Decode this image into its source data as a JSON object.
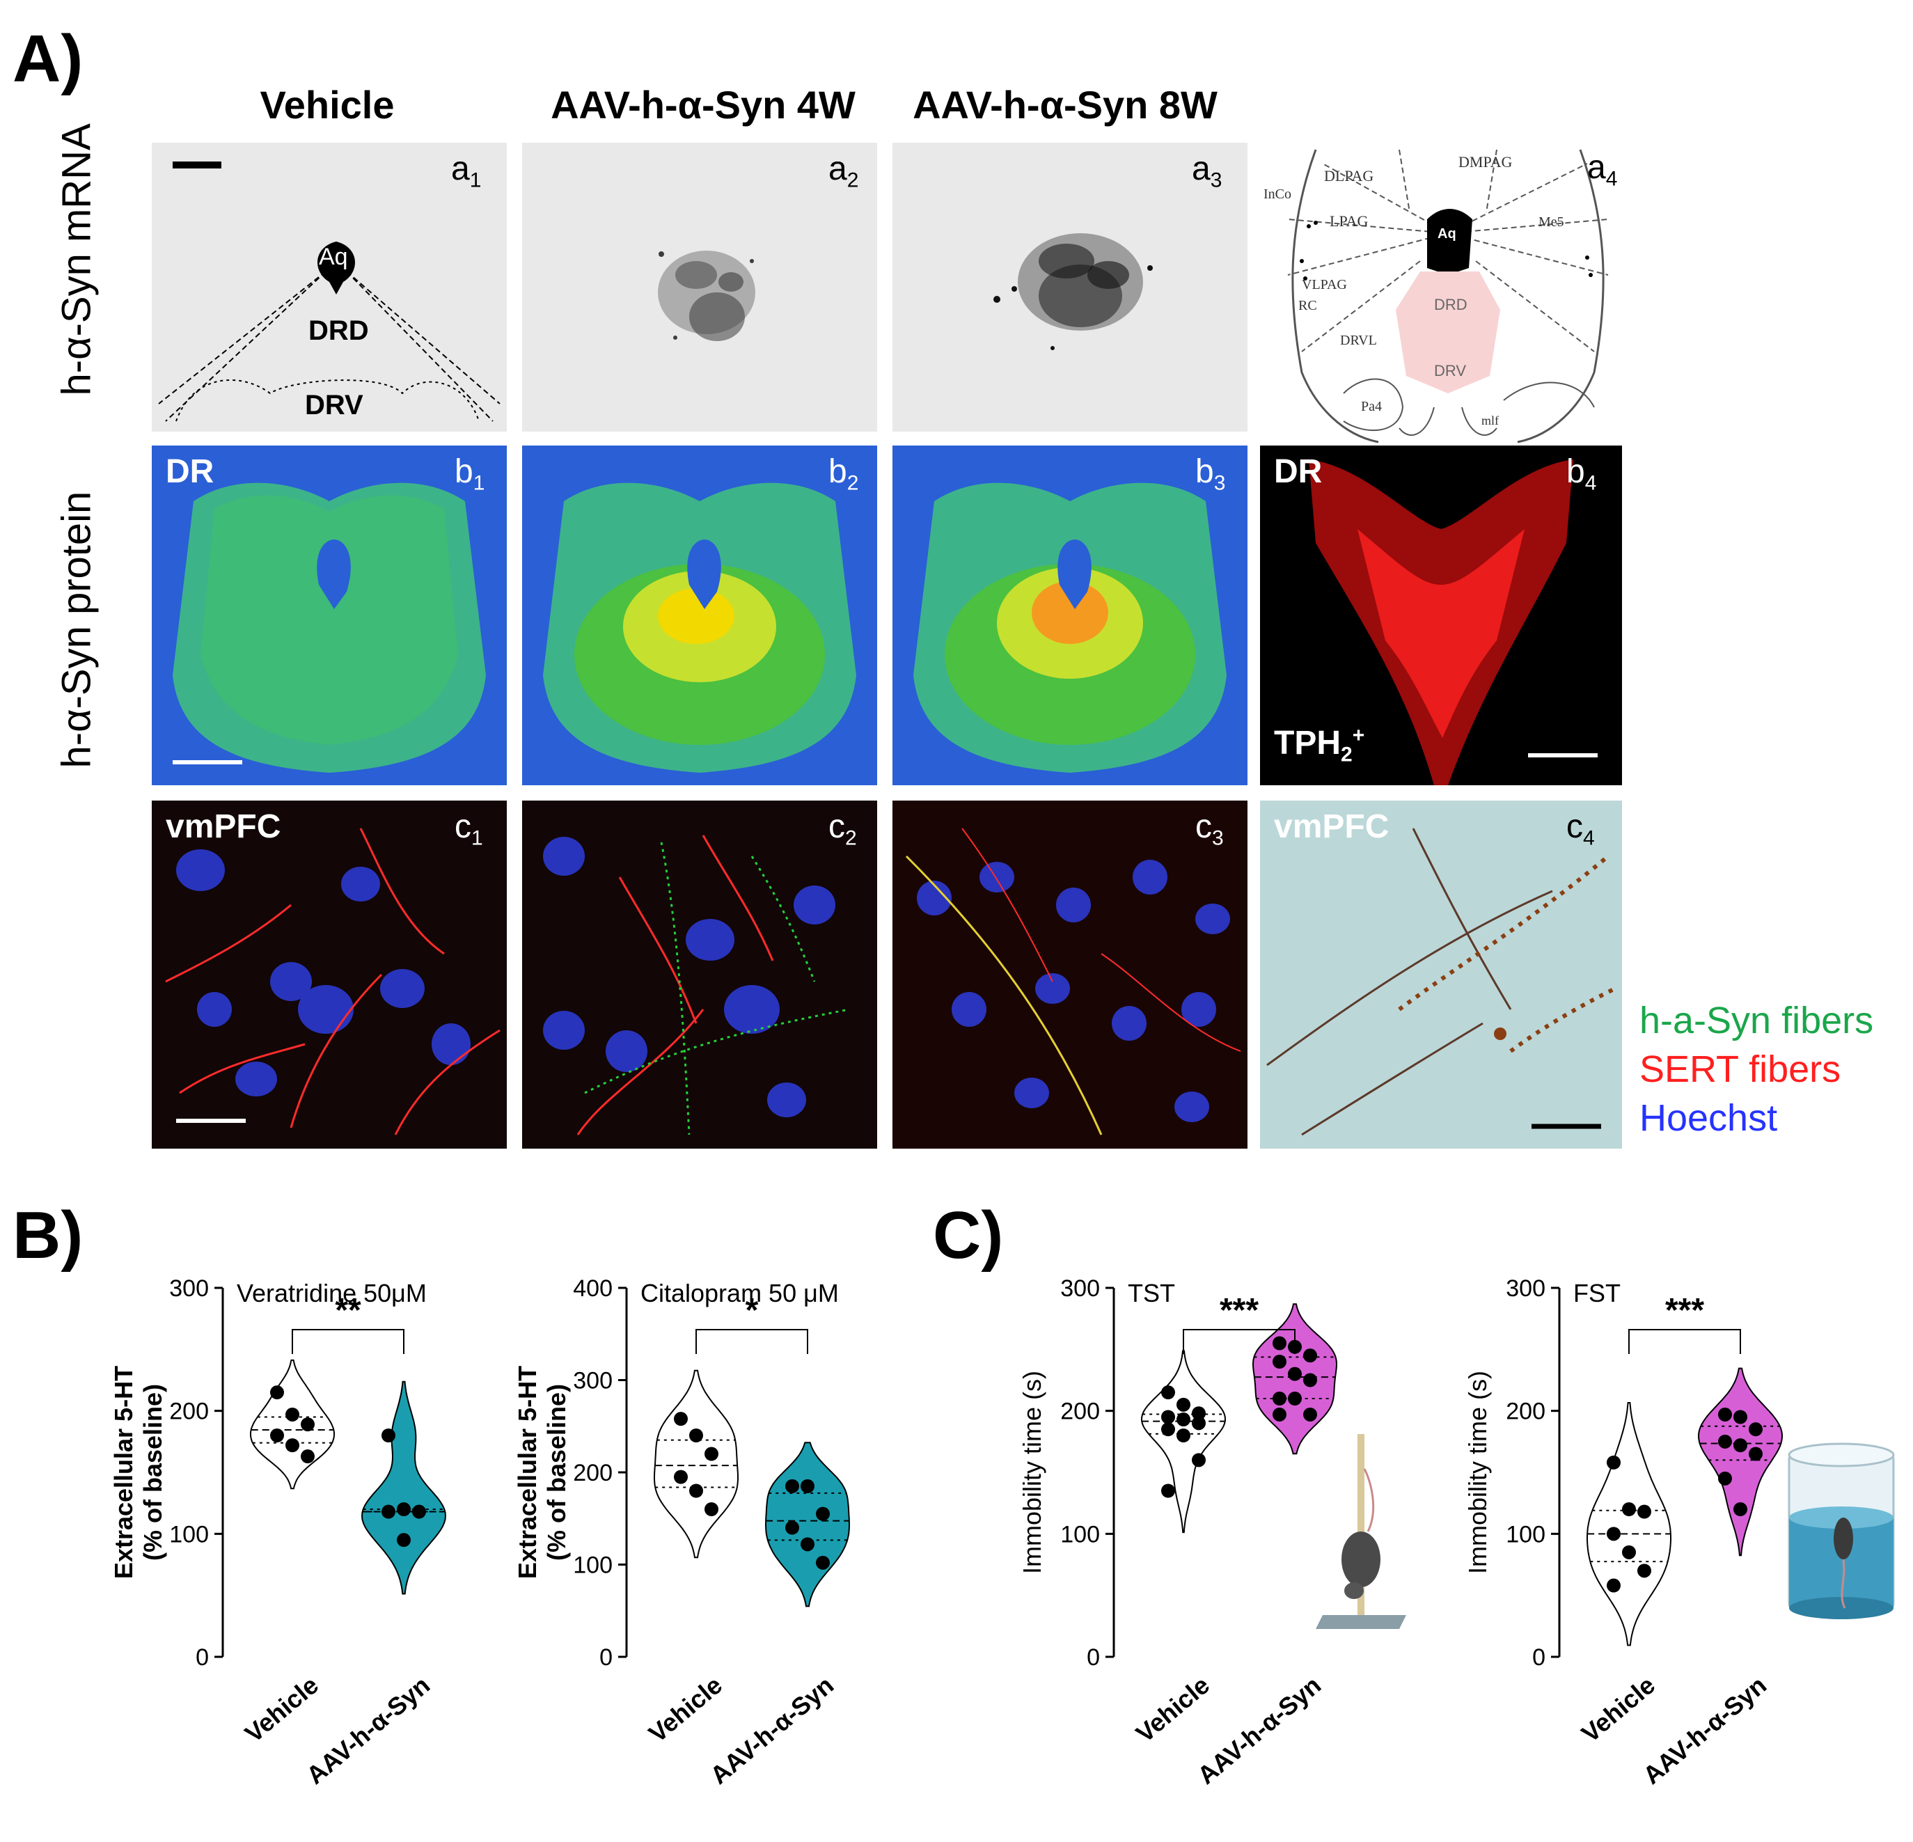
{
  "panel_letters": {
    "A": "A)",
    "B": "B)",
    "C": "C)"
  },
  "column_titles": [
    "Vehicle",
    "AAV-h-α-Syn 4W",
    "AAV-h-α-Syn 8W"
  ],
  "row_labels": [
    "h-α-Syn mRNA",
    "h-α-Syn protein"
  ],
  "sublabels": {
    "a": [
      "a",
      "1",
      "a",
      "2",
      "a",
      "3",
      "a",
      "4"
    ],
    "b": [
      "b",
      "1",
      "b",
      "2",
      "b",
      "3",
      "b",
      "4"
    ],
    "c": [
      "c",
      "1",
      "c",
      "2",
      "c",
      "3",
      "c",
      "4"
    ]
  },
  "image_tags": {
    "aq": "Aq",
    "drd": "DRD",
    "drv": "DRV",
    "dr1": "DR",
    "dr4": "DR",
    "tph": "TPH",
    "tph_sub": "2",
    "tph_sup": "+",
    "vmpfc1": "vmPFC",
    "vmpfc4": "vmPFC"
  },
  "atlas_labels": [
    "DMPAG",
    "DLPAG",
    "InCo",
    "LPAG",
    "Aq",
    "Me5",
    "VLPAG",
    "RC",
    "DRD",
    "DRVL",
    "DRV",
    "Pa4",
    "mlf"
  ],
  "legend": {
    "items": [
      {
        "label": "h-a-Syn fibers",
        "color": "#1aa64a"
      },
      {
        "label": "SERT fibers",
        "color": "#ff1f1f"
      },
      {
        "label": "Hoechst",
        "color": "#2633ff"
      }
    ]
  },
  "colors": {
    "vehicle": "#ffffff",
    "aav_b": "#1a9eaf",
    "aav_c": "#d65fd6"
  },
  "chart_data": [
    {
      "type": "violin",
      "title": "Veratridine 50μM",
      "ylabel_line1": "Extracellular 5-HT",
      "ylabel_line2": "(% of baseline)",
      "categories": [
        "Vehicle",
        "AAV-h-α-Syn"
      ],
      "ylim": [
        0,
        300
      ],
      "yticks": [
        "0",
        "100",
        "200",
        "300"
      ],
      "significance": "**",
      "series": [
        {
          "name": "Vehicle",
          "values": [
            215,
            197,
            189,
            180,
            172,
            163
          ]
        },
        {
          "name": "AAV-h-α-Syn",
          "values": [
            180,
            120,
            118,
            118,
            95
          ]
        }
      ]
    },
    {
      "type": "violin",
      "title": "Citalopram 50 μM",
      "ylabel_line1": "Extracellular 5-HT",
      "ylabel_line2": "(% of baseline)",
      "categories": [
        "Vehicle",
        "AAV-h-α-Syn"
      ],
      "ylim": [
        0,
        400
      ],
      "yticks": [
        "0",
        "100",
        "200",
        "300",
        "400"
      ],
      "significance": "*",
      "series": [
        {
          "name": "Vehicle",
          "values": [
            258,
            240,
            220,
            195,
            180,
            160
          ]
        },
        {
          "name": "AAV-h-α-Syn",
          "values": [
            185,
            185,
            155,
            140,
            122,
            102
          ]
        }
      ]
    },
    {
      "type": "violin",
      "title": "TST",
      "ylabel_line1": "Immobility time (s)",
      "categories": [
        "Vehicle",
        "AAV-h-α-Syn"
      ],
      "ylim": [
        0,
        300
      ],
      "yticks": [
        "0",
        "100",
        "200",
        "300"
      ],
      "significance": "***",
      "series": [
        {
          "name": "Vehicle",
          "values": [
            215,
            205,
            198,
            195,
            193,
            190,
            185,
            180,
            160,
            135
          ]
        },
        {
          "name": "AAV-h-α-Syn",
          "values": [
            255,
            252,
            245,
            240,
            230,
            225,
            210,
            210,
            197,
            197
          ]
        }
      ]
    },
    {
      "type": "violin",
      "title": "FST",
      "ylabel_line1": "Immobility time (s)",
      "categories": [
        "Vehicle",
        "AAV-h-α-Syn"
      ],
      "ylim": [
        0,
        300
      ],
      "yticks": [
        "0",
        "100",
        "200",
        "300"
      ],
      "significance": "***",
      "series": [
        {
          "name": "Vehicle",
          "values": [
            158,
            120,
            118,
            100,
            85,
            70,
            58
          ]
        },
        {
          "name": "AAV-h-α-Syn",
          "values": [
            197,
            195,
            185,
            175,
            172,
            165,
            145,
            120
          ]
        }
      ]
    }
  ]
}
